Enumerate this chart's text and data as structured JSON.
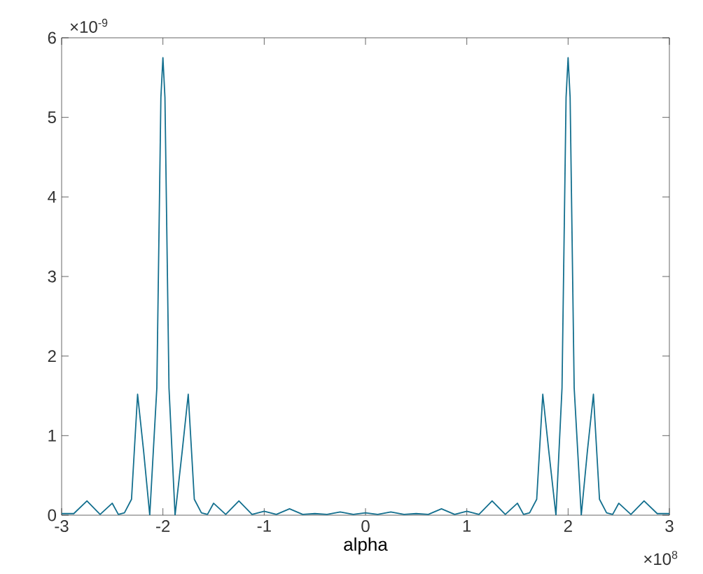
{
  "chart_data": {
    "type": "line",
    "xlabel": "alpha",
    "annotations": [
      "×10$^{-9}$",
      "×10$^{8}$"
    ],
    "x": [
      -3,
      -2.88,
      -2.75,
      -2.62,
      -2.5,
      -2.44,
      -2.38,
      -2.31,
      -2.25,
      -2.19,
      -2.13,
      -2.06,
      -2.02,
      -2.0,
      -1.98,
      -1.94,
      -1.88,
      -1.81,
      -1.75,
      -1.69,
      -1.62,
      -1.56,
      -1.5,
      -1.38,
      -1.25,
      -1.12,
      -1.0,
      -0.88,
      -0.75,
      -0.62,
      -0.5,
      -0.38,
      -0.25,
      -0.12,
      0,
      0.12,
      0.25,
      0.38,
      0.5,
      0.62,
      0.75,
      0.88,
      1.0,
      1.12,
      1.25,
      1.38,
      1.5,
      1.56,
      1.62,
      1.69,
      1.75,
      1.81,
      1.88,
      1.94,
      1.98,
      2.0,
      2.02,
      2.06,
      2.13,
      2.19,
      2.25,
      2.31,
      2.38,
      2.44,
      2.5,
      2.62,
      2.75,
      2.88,
      3
    ],
    "series": [
      {
        "color": "#136f8e",
        "values": [
          0.02,
          0.02,
          0.18,
          0.01,
          0.15,
          0.01,
          0.03,
          0.2,
          1.52,
          0.8,
          0.0,
          1.6,
          5.25,
          5.75,
          5.25,
          1.6,
          0.0,
          0.8,
          1.52,
          0.2,
          0.03,
          0.01,
          0.15,
          0.01,
          0.18,
          0.01,
          0.05,
          0.01,
          0.08,
          0.01,
          0.02,
          0.01,
          0.04,
          0.01,
          0.03,
          0.01,
          0.04,
          0.01,
          0.02,
          0.01,
          0.08,
          0.01,
          0.05,
          0.01,
          0.18,
          0.01,
          0.15,
          0.01,
          0.03,
          0.2,
          1.52,
          0.8,
          0.0,
          1.6,
          5.25,
          5.75,
          5.25,
          1.6,
          0.0,
          0.8,
          1.52,
          0.2,
          0.03,
          0.01,
          0.15,
          0.01,
          0.18,
          0.02,
          0.02
        ]
      }
    ],
    "xlim": [
      -3,
      3
    ],
    "ylim": [
      0,
      6
    ],
    "xticks": [
      -3,
      -2,
      -1,
      0,
      1,
      2,
      3
    ],
    "yticks": [
      0,
      1,
      2,
      3,
      4,
      5,
      6
    ],
    "grid": false,
    "marker": "none",
    "line_style": "solid"
  }
}
